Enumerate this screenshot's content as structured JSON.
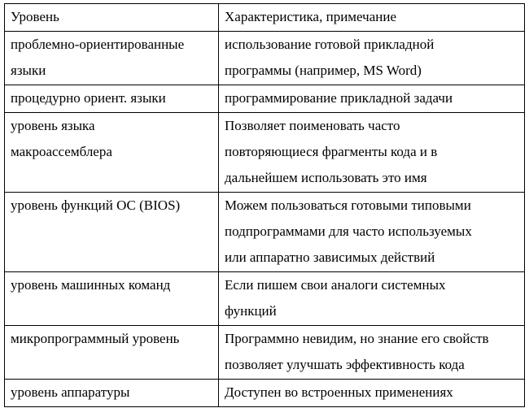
{
  "table": {
    "rows": [
      [
        [
          "Уровень"
        ],
        [
          "Характеристика, примечание"
        ]
      ],
      [
        [
          "проблемно-ориентированные",
          "языки"
        ],
        [
          "использование готовой прикладной",
          "программы (например, MS Word)"
        ]
      ],
      [
        [
          "процедурно ориент. языки"
        ],
        [
          "программирование прикладной задачи"
        ]
      ],
      [
        [
          "уровень языка",
          "макроассемблера"
        ],
        [
          "Позволяет поименовать часто",
          "повторяющиеся фрагменты кода и в",
          "дальнейшем использовать это имя"
        ]
      ],
      [
        [
          "уровень функций ОС (BIOS)"
        ],
        [
          "Можем пользоваться готовыми типовыми",
          "подпрограммами для часто используемых",
          "или аппаратно зависимых действий"
        ]
      ],
      [
        [
          "уровень машинных команд"
        ],
        [
          "Если пишем свои аналоги системных",
          "функций"
        ]
      ],
      [
        [
          "микропрограммный уровень"
        ],
        [
          "Программно невидим, но знание его свойств",
          "позволяет улучшать эффективность кода"
        ]
      ],
      [
        [
          "уровень аппаратуры"
        ],
        [
          "Доступен во встроенных применениях"
        ]
      ]
    ]
  }
}
